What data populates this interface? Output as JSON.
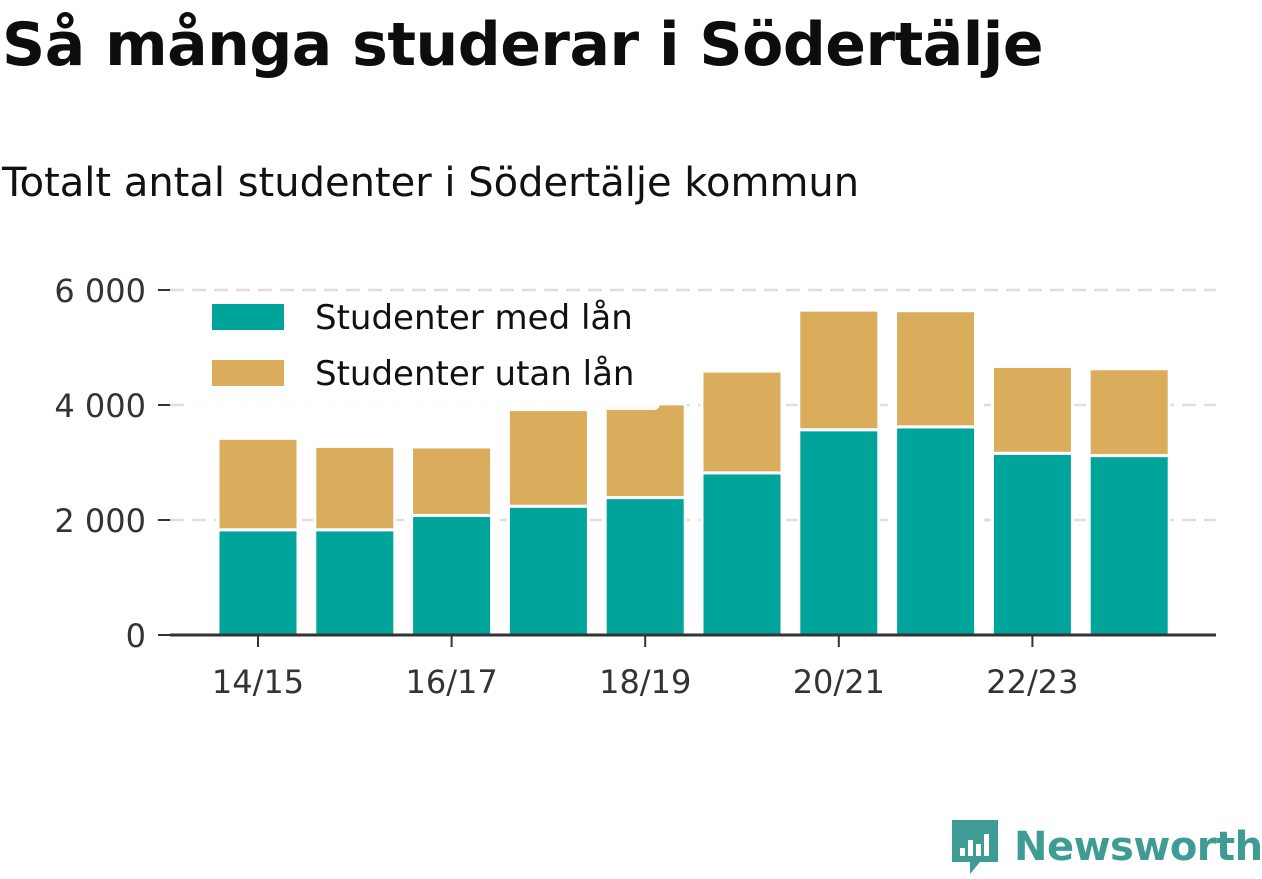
{
  "title": "Så många studerar i Södertälje",
  "subtitle": "Totalt antal studenter i Södertälje kommun",
  "brand": {
    "name": "Newsworthy",
    "icon": "newsworthy-logo-icon",
    "color": "#3f9c94"
  },
  "chart_data": {
    "type": "bar",
    "stacked": true,
    "categories": [
      "14/15",
      "15/16",
      "16/17",
      "17/18",
      "18/19",
      "19/20",
      "20/21",
      "21/22",
      "22/23",
      "23/24"
    ],
    "x_tick_labels": [
      "14/15",
      "",
      "16/17",
      "",
      "18/19",
      "",
      "20/21",
      "",
      "22/23",
      ""
    ],
    "series": [
      {
        "name": "Studenter med lån",
        "color": "#00a49a",
        "values": [
          1830,
          1830,
          2080,
          2240,
          2390,
          2820,
          3570,
          3620,
          3160,
          3120
        ]
      },
      {
        "name": "Studenter utan lån",
        "color": "#d9ad5b",
        "values": [
          1590,
          1450,
          1190,
          1680,
          1630,
          1770,
          2080,
          2020,
          1510,
          1510
        ]
      }
    ],
    "ylim": [
      0,
      6000
    ],
    "y_ticks": [
      0,
      2000,
      4000,
      6000
    ],
    "y_tick_labels": [
      "0",
      "2 000",
      "4 000",
      "6 000"
    ],
    "grid": true,
    "legend_position": "top-left"
  }
}
